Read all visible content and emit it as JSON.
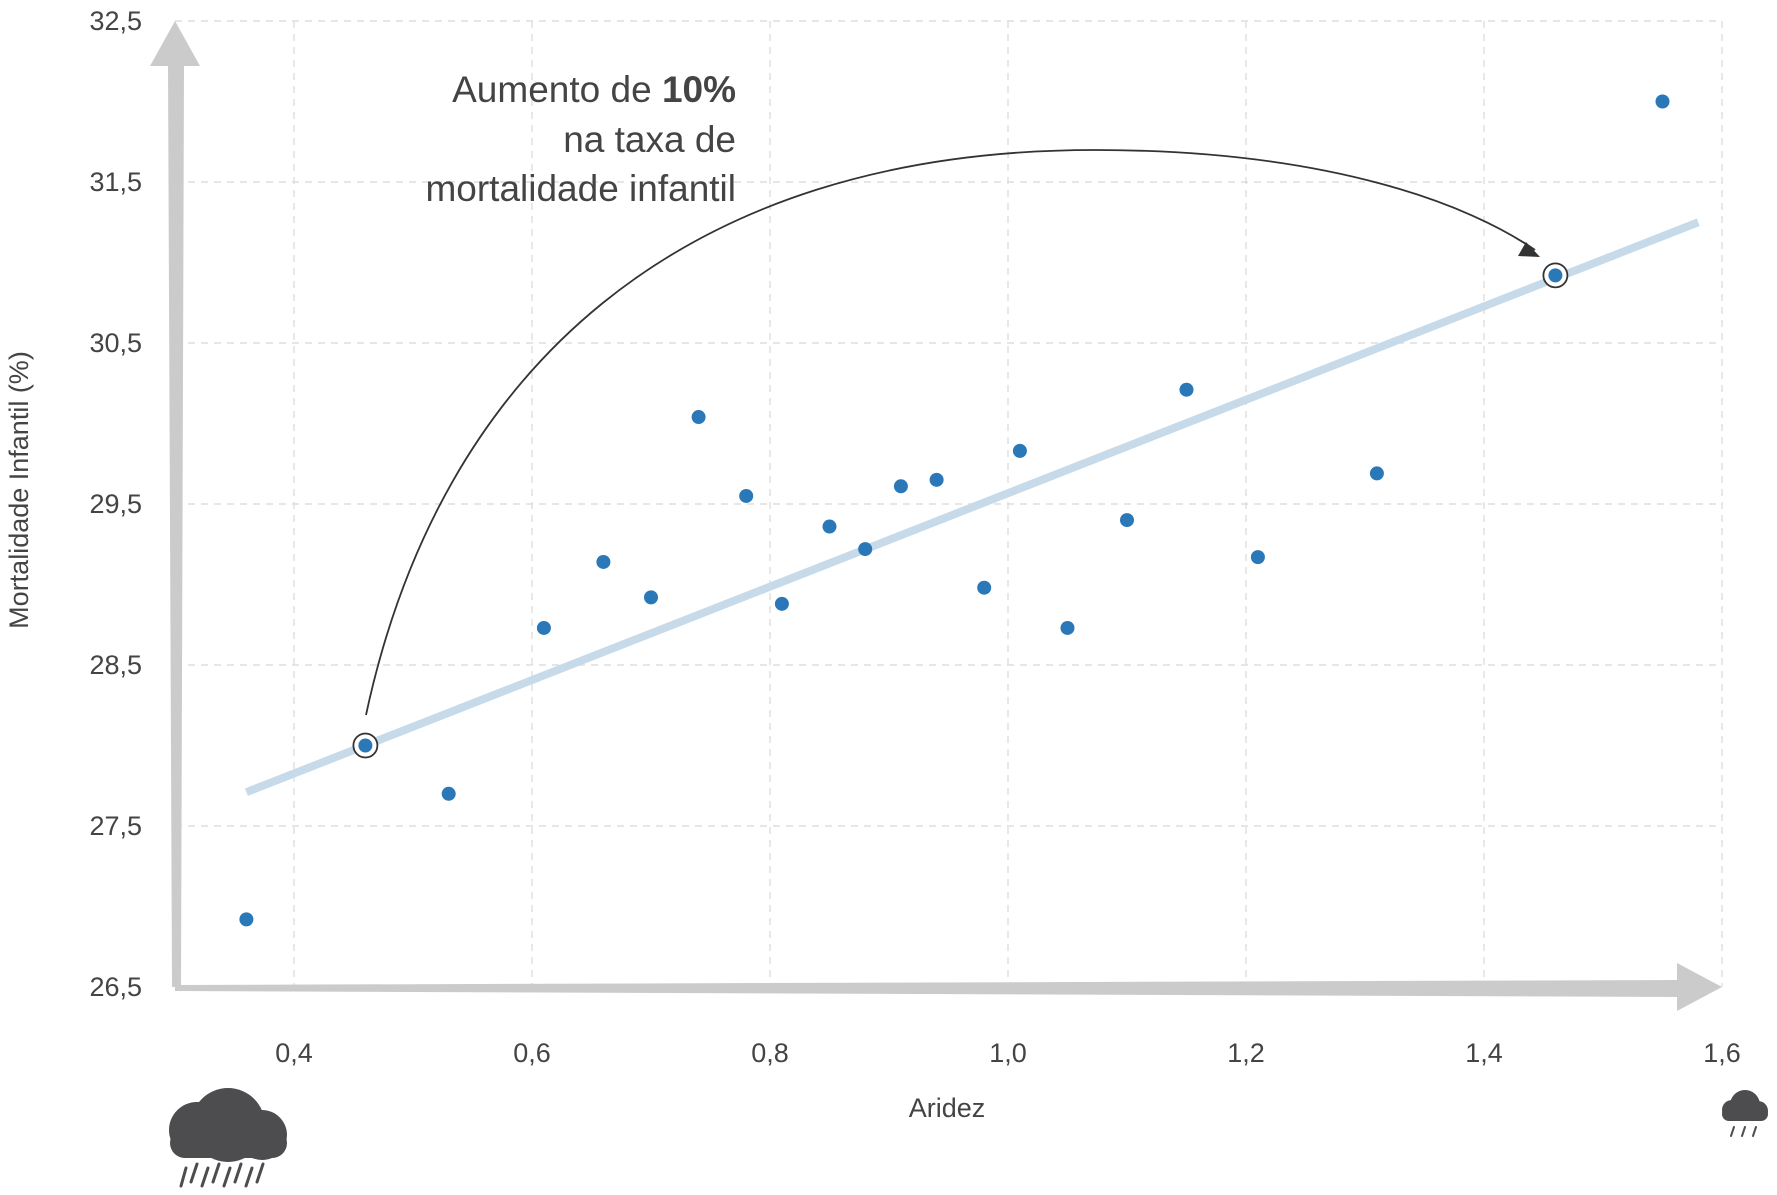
{
  "chart_data": {
    "type": "scatter",
    "xlabel": "Aridez",
    "ylabel": "Mortalidade Infantil (%)",
    "xlim": [
      0.3,
      1.6
    ],
    "ylim": [
      26.5,
      32.5
    ],
    "x_ticks": [
      0.4,
      0.6,
      0.8,
      1.0,
      1.2,
      1.4,
      1.6
    ],
    "x_tick_labels": [
      "0,4",
      "0,6",
      "0,8",
      "1,0",
      "1,2",
      "1,4",
      "1,6"
    ],
    "y_ticks": [
      26.5,
      27.5,
      28.5,
      29.5,
      30.5,
      31.5,
      32.5
    ],
    "y_tick_labels": [
      "26,5",
      "27,5",
      "28,5",
      "29,5",
      "30,5",
      "31,5",
      "32,5"
    ],
    "grid": true,
    "points": [
      {
        "x": 0.36,
        "y": 26.92
      },
      {
        "x": 0.53,
        "y": 27.7
      },
      {
        "x": 0.61,
        "y": 28.73
      },
      {
        "x": 0.66,
        "y": 29.14
      },
      {
        "x": 0.7,
        "y": 28.92
      },
      {
        "x": 0.74,
        "y": 30.04
      },
      {
        "x": 0.78,
        "y": 29.55
      },
      {
        "x": 0.81,
        "y": 28.88
      },
      {
        "x": 0.85,
        "y": 29.36
      },
      {
        "x": 0.88,
        "y": 29.22
      },
      {
        "x": 0.91,
        "y": 29.61
      },
      {
        "x": 0.94,
        "y": 29.65
      },
      {
        "x": 0.98,
        "y": 28.98
      },
      {
        "x": 1.01,
        "y": 29.83
      },
      {
        "x": 1.05,
        "y": 28.73
      },
      {
        "x": 1.1,
        "y": 29.4
      },
      {
        "x": 1.15,
        "y": 30.21
      },
      {
        "x": 1.21,
        "y": 29.17
      },
      {
        "x": 1.31,
        "y": 29.69
      },
      {
        "x": 1.55,
        "y": 32.0
      }
    ],
    "trendline": {
      "x": [
        0.36,
        1.58
      ],
      "y": [
        27.71,
        31.25
      ]
    },
    "highlighted_points": [
      {
        "x": 0.46,
        "y": 28.0
      },
      {
        "x": 1.46,
        "y": 30.92
      }
    ],
    "annotation": {
      "line1_prefix": "Aumento de ",
      "line1_bold": "10%",
      "line2": "na taxa de",
      "line3": "mortalidade infantil"
    },
    "colors": {
      "point": "#2a78b8",
      "trendline": "#c7dae9",
      "axis_arrow": "#cbcbcb",
      "annotation": "#444444",
      "icon": "#4d4d4f"
    },
    "icons": {
      "left": "heavy-rain-cloud-icon",
      "right": "light-rain-cloud-icon"
    }
  }
}
